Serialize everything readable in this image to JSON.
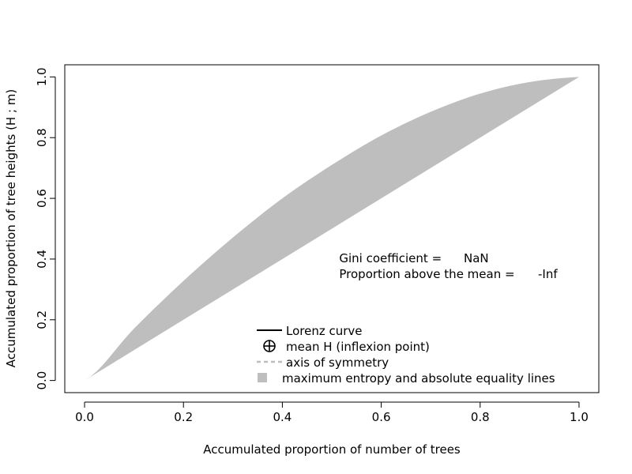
{
  "chart_data": {
    "type": "area",
    "title": "",
    "xlabel": "Accumulated proportion of number of trees",
    "ylabel": "Accumulated proportion of tree heights (H ; m)",
    "xlim": [
      -0.04,
      1.04
    ],
    "ylim": [
      -0.04,
      1.04
    ],
    "x_ticks": [
      0.0,
      0.2,
      0.4,
      0.6,
      0.8,
      1.0
    ],
    "x_tick_labels": [
      "0.0",
      "0.2",
      "0.4",
      "0.6",
      "0.8",
      "1.0"
    ],
    "y_ticks": [
      0.0,
      0.2,
      0.4,
      0.6,
      0.8,
      1.0
    ],
    "y_tick_labels": [
      "0.0",
      "0.2",
      "0.4",
      "0.6",
      "0.8",
      "1.0"
    ],
    "band": {
      "name": "maximum entropy and absolute equality lines",
      "color": "#bebebe",
      "upper": {
        "x": [
          0.0,
          0.1,
          0.2,
          0.3,
          0.4,
          0.5,
          0.6,
          0.7,
          0.8,
          0.9,
          1.0
        ],
        "y": [
          0.0,
          0.171,
          0.328,
          0.471,
          0.6,
          0.71,
          0.807,
          0.885,
          0.945,
          0.983,
          1.0
        ]
      },
      "lower": {
        "x": [
          0.0,
          1.0
        ],
        "y": [
          0.0,
          1.0
        ]
      }
    },
    "annotations": {
      "gini_label": "Gini coefficient =",
      "gini_value": "NaN",
      "proportion_label": "Proportion above the mean =",
      "proportion_value": "-Inf",
      "anchor_x": 0.515
    },
    "legend": {
      "position": "bottom-right",
      "entries": [
        {
          "label": "Lorenz curve",
          "symbol": "solid-line",
          "color": "#000000"
        },
        {
          "label": "mean H (inflexion point)",
          "symbol": "circle-plus",
          "color": "#000000"
        },
        {
          "label": "axis of symmetry",
          "symbol": "dashed-line",
          "color": "#bebebe"
        },
        {
          "label": "maximum entropy and absolute equality lines",
          "symbol": "filled-square",
          "color": "#bebebe"
        }
      ]
    }
  }
}
